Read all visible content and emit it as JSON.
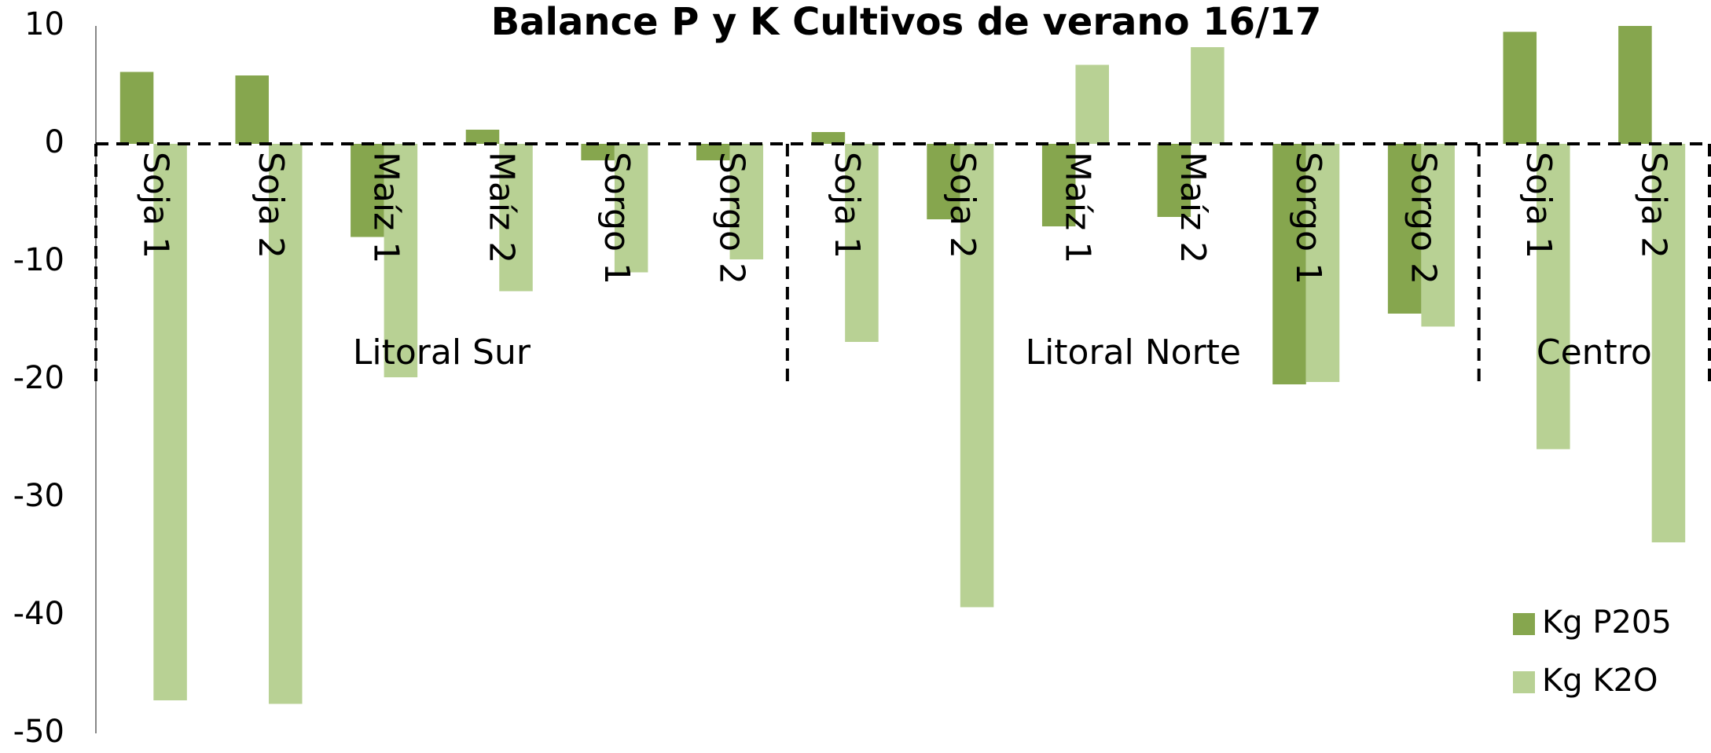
{
  "chart_data": {
    "type": "bar",
    "title": "Balance P y K Cultivos de verano 16/17",
    "groups": [
      {
        "name": "Litoral Sur",
        "categories": [
          "Soja 1",
          "Soja 2",
          "Maíz 1",
          "Maíz 2",
          "Sorgo 1",
          "Sorgo 2"
        ]
      },
      {
        "name": "Litoral Norte",
        "categories": [
          "Soja 1",
          "Soja 2",
          "Maíz 1",
          "Maíz 2",
          "Sorgo 1",
          "Sorgo 2"
        ]
      },
      {
        "name": "Centro",
        "categories": [
          "Soja 1",
          "Soja 2"
        ]
      }
    ],
    "series": [
      {
        "name": "Kg P205",
        "color": "#86a64e",
        "values": [
          6.1,
          5.8,
          -7.9,
          1.2,
          -1.4,
          -1.4,
          1.0,
          -6.4,
          -7.0,
          -6.2,
          -20.4,
          -14.4,
          9.5,
          10.0
        ]
      },
      {
        "name": "Kg K2O",
        "color": "#b8d194",
        "values": [
          -47.2,
          -47.5,
          -19.8,
          -12.5,
          -10.9,
          -9.8,
          -16.8,
          -39.3,
          6.7,
          8.2,
          -20.2,
          -15.5,
          -25.9,
          -33.8
        ]
      }
    ],
    "ylim": [
      -50,
      10
    ],
    "yticks": [
      -50,
      -40,
      -30,
      -20,
      -10,
      0,
      10
    ],
    "grid": false,
    "legend": "bottom-right"
  }
}
